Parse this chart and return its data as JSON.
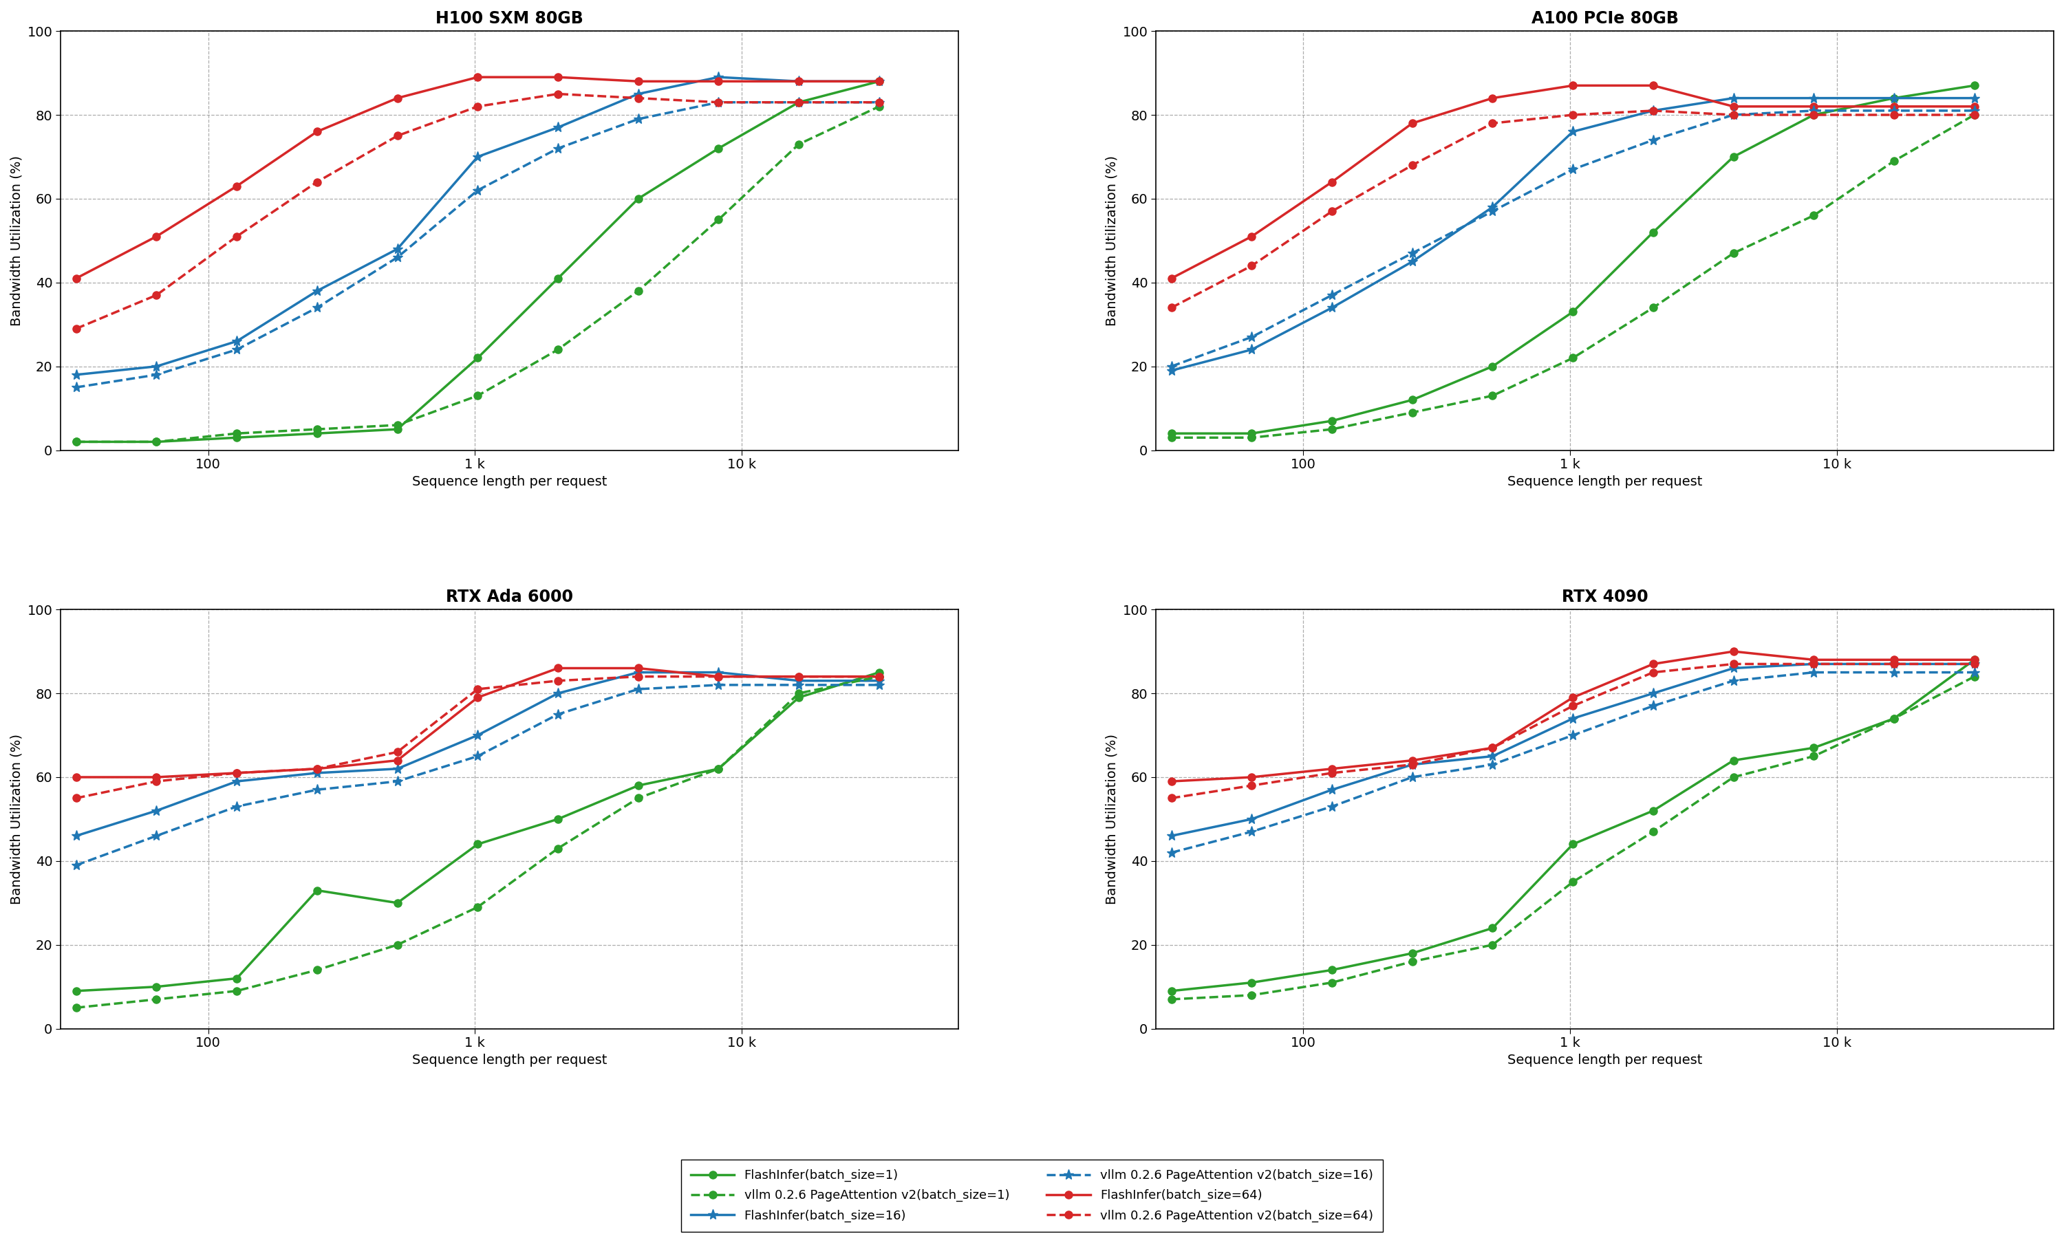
{
  "x_values": [
    32,
    64,
    128,
    256,
    512,
    1024,
    2048,
    4096,
    8192,
    16384,
    32768
  ],
  "titles": [
    "H100 SXM 80GB",
    "A100 PCIe 80GB",
    "RTX Ada 6000",
    "RTX 4090"
  ],
  "xlabel": "Sequence length per request",
  "ylabel": "Bandwidth Utilization (%)",
  "ylim": [
    0,
    100
  ],
  "colors": {
    "green": "#2ca02c",
    "blue": "#1f77b4",
    "red": "#d62728"
  },
  "series": {
    "H100 SXM 80GB": {
      "flashinfer_bs1": [
        2,
        2,
        3,
        4,
        5,
        22,
        41,
        60,
        72,
        83,
        88
      ],
      "flashinfer_bs16": [
        18,
        20,
        26,
        38,
        48,
        70,
        77,
        85,
        89,
        88,
        88
      ],
      "flashinfer_bs64": [
        41,
        51,
        63,
        76,
        84,
        89,
        89,
        88,
        88,
        88,
        88
      ],
      "vllm_bs1": [
        2,
        2,
        4,
        5,
        6,
        13,
        24,
        38,
        55,
        73,
        82
      ],
      "vllm_bs16": [
        15,
        18,
        24,
        34,
        46,
        62,
        72,
        79,
        83,
        83,
        83
      ],
      "vllm_bs64": [
        29,
        37,
        51,
        64,
        75,
        82,
        85,
        84,
        83,
        83,
        83
      ]
    },
    "A100 PCIe 80GB": {
      "flashinfer_bs1": [
        4,
        4,
        7,
        12,
        20,
        33,
        52,
        70,
        80,
        84,
        87
      ],
      "flashinfer_bs16": [
        19,
        24,
        34,
        45,
        58,
        76,
        81,
        84,
        84,
        84,
        84
      ],
      "flashinfer_bs64": [
        41,
        51,
        64,
        78,
        84,
        87,
        87,
        82,
        82,
        82,
        82
      ],
      "vllm_bs1": [
        3,
        3,
        5,
        9,
        13,
        22,
        34,
        47,
        56,
        69,
        80
      ],
      "vllm_bs16": [
        20,
        27,
        37,
        47,
        57,
        67,
        74,
        80,
        81,
        81,
        81
      ],
      "vllm_bs64": [
        34,
        44,
        57,
        68,
        78,
        80,
        81,
        80,
        80,
        80,
        80
      ]
    },
    "RTX Ada 6000": {
      "flashinfer_bs1": [
        9,
        10,
        12,
        33,
        30,
        44,
        50,
        58,
        62,
        79,
        85
      ],
      "flashinfer_bs16": [
        46,
        52,
        59,
        61,
        62,
        70,
        80,
        85,
        85,
        83,
        83
      ],
      "flashinfer_bs64": [
        60,
        60,
        61,
        62,
        64,
        79,
        86,
        86,
        84,
        84,
        84
      ],
      "vllm_bs1": [
        5,
        7,
        9,
        14,
        20,
        29,
        43,
        55,
        62,
        80,
        84
      ],
      "vllm_bs16": [
        39,
        46,
        53,
        57,
        59,
        65,
        75,
        81,
        82,
        82,
        82
      ],
      "vllm_bs64": [
        55,
        59,
        61,
        62,
        66,
        81,
        83,
        84,
        84,
        84,
        84
      ]
    },
    "RTX 4090": {
      "flashinfer_bs1": [
        9,
        11,
        14,
        18,
        24,
        44,
        52,
        64,
        67,
        74,
        88
      ],
      "flashinfer_bs16": [
        46,
        50,
        57,
        63,
        65,
        74,
        80,
        86,
        87,
        87,
        87
      ],
      "flashinfer_bs64": [
        59,
        60,
        62,
        64,
        67,
        79,
        87,
        90,
        88,
        88,
        88
      ],
      "vllm_bs1": [
        7,
        8,
        11,
        16,
        20,
        35,
        47,
        60,
        65,
        74,
        84
      ],
      "vllm_bs16": [
        42,
        47,
        53,
        60,
        63,
        70,
        77,
        83,
        85,
        85,
        85
      ],
      "vllm_bs64": [
        55,
        58,
        61,
        63,
        67,
        77,
        85,
        87,
        87,
        87,
        87
      ]
    }
  },
  "background_color": "#ffffff",
  "grid_color": "#999999",
  "font_size": 14,
  "title_fontsize": 17,
  "linewidth": 2.5,
  "markersize_circle": 8,
  "markersize_star": 11
}
